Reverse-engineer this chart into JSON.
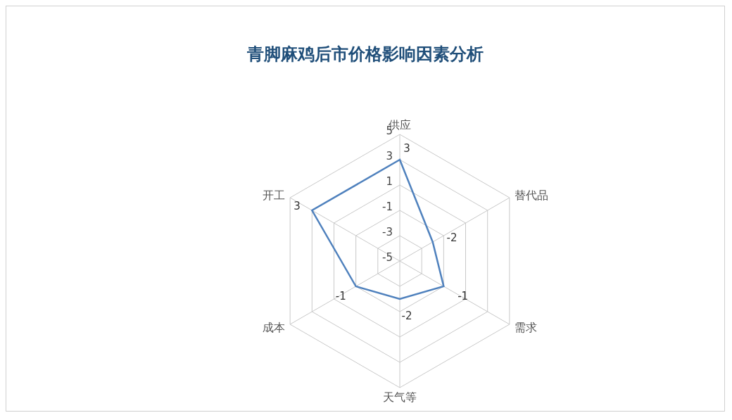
{
  "chart_data": {
    "type": "radar",
    "title": "青脚麻鸡后市价格影响因素分析",
    "categories": [
      "供应",
      "替代品",
      "需求",
      "天气等",
      "成本",
      "开工"
    ],
    "series": [
      {
        "color": "#4f81bd",
        "values": [
          3,
          -2,
          -1,
          -2,
          -1,
          3
        ]
      }
    ],
    "ylim": [
      -5,
      5
    ],
    "yticks": [
      -5,
      -3,
      -1,
      1,
      3,
      5
    ],
    "grid": true,
    "legend": false,
    "data_labels": true,
    "marker": "none"
  }
}
